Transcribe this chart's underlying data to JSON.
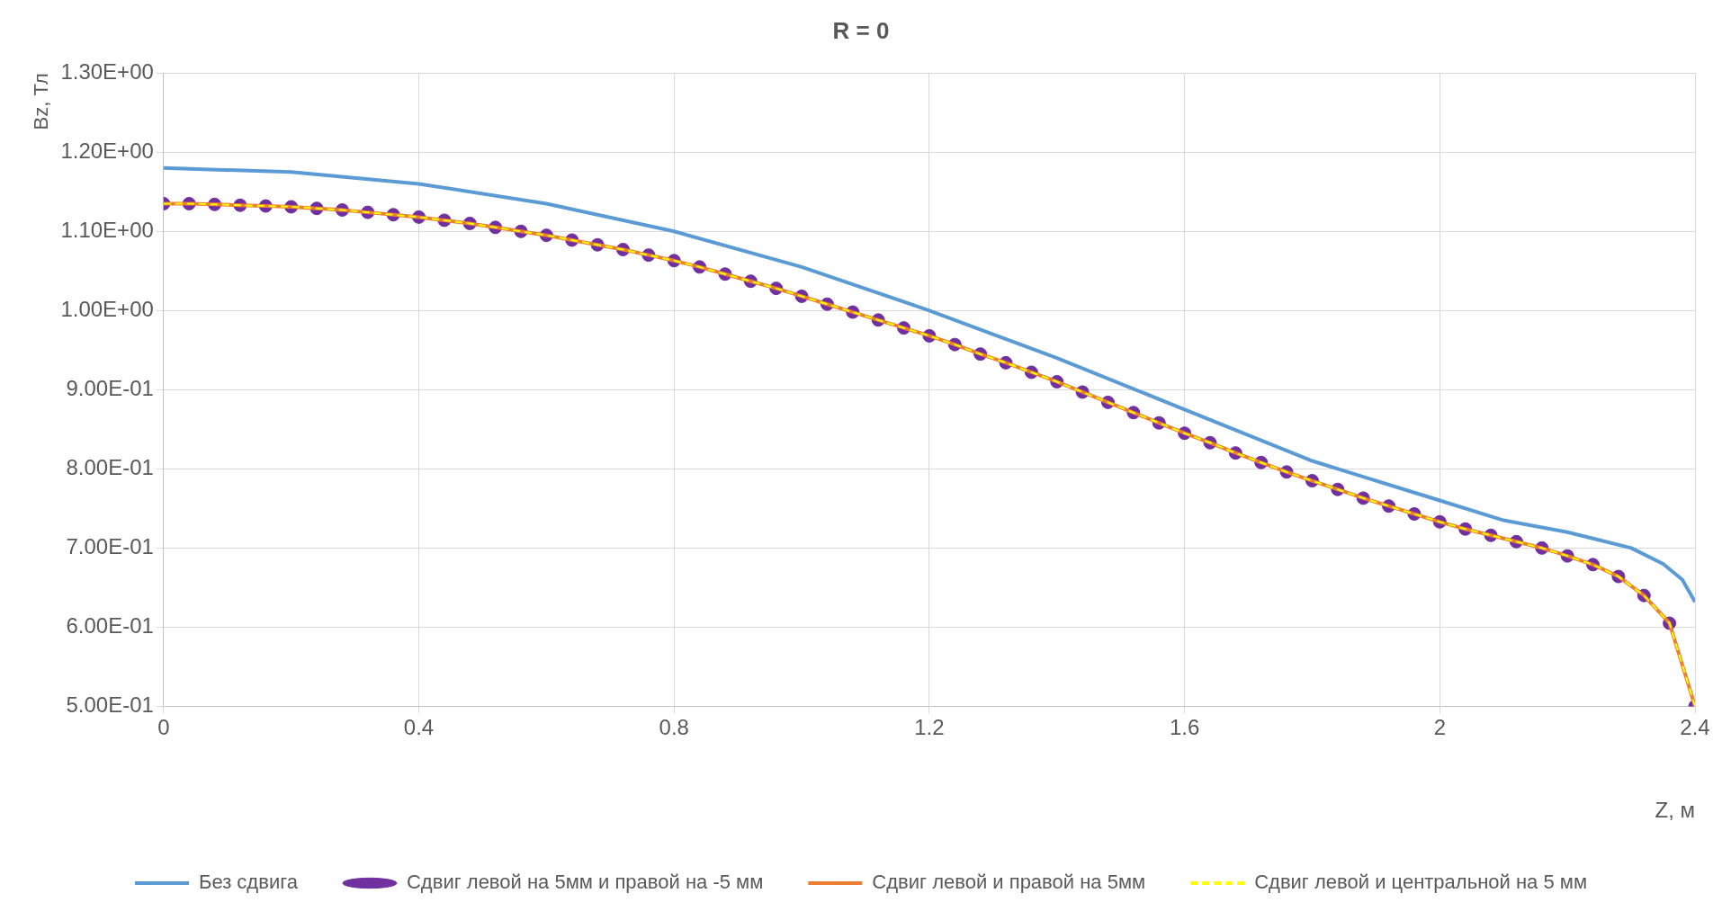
{
  "chart_data": {
    "type": "line",
    "title": "R = 0",
    "xlabel": "Z, м",
    "ylabel": "Bz, Тл",
    "x": [
      0,
      0.04,
      0.08,
      0.12,
      0.16,
      0.2,
      0.24,
      0.28,
      0.32,
      0.36,
      0.4,
      0.44,
      0.48,
      0.52,
      0.56,
      0.6,
      0.64,
      0.68,
      0.72,
      0.76,
      0.8,
      0.84,
      0.88,
      0.92,
      0.96,
      1.0,
      1.04,
      1.08,
      1.12,
      1.16,
      1.2,
      1.24,
      1.28,
      1.32,
      1.36,
      1.4,
      1.44,
      1.48,
      1.52,
      1.56,
      1.6,
      1.64,
      1.68,
      1.72,
      1.76,
      1.8,
      1.84,
      1.88,
      1.92,
      1.96,
      2.0,
      2.04,
      2.08,
      2.12,
      2.16,
      2.2,
      2.24,
      2.28,
      2.32,
      2.36,
      2.4
    ],
    "series": [
      {
        "name": "Без сдвига",
        "color": "#5b9bd5",
        "type": "line",
        "marker": "none",
        "line_style": "solid",
        "x": [
          0,
          0.2,
          0.4,
          0.6,
          0.8,
          1.0,
          1.2,
          1.4,
          1.6,
          1.8,
          2.0,
          2.1,
          2.2,
          2.3,
          2.35,
          2.38,
          2.4
        ],
        "values": [
          1.18,
          1.175,
          1.16,
          1.135,
          1.1,
          1.055,
          1.0,
          0.94,
          0.875,
          0.81,
          0.76,
          0.735,
          0.72,
          0.7,
          0.68,
          0.66,
          0.632
        ]
      },
      {
        "name": "Сдвиг левой на 5мм и правой на -5 мм",
        "color": "#7030a0",
        "type": "scatter",
        "marker": "circle",
        "values": [
          1.135,
          1.135,
          1.134,
          1.133,
          1.132,
          1.131,
          1.129,
          1.127,
          1.124,
          1.121,
          1.118,
          1.114,
          1.11,
          1.105,
          1.1,
          1.095,
          1.089,
          1.083,
          1.077,
          1.07,
          1.063,
          1.055,
          1.046,
          1.037,
          1.028,
          1.018,
          1.008,
          0.998,
          0.988,
          0.978,
          0.968,
          0.957,
          0.945,
          0.934,
          0.922,
          0.91,
          0.897,
          0.884,
          0.871,
          0.858,
          0.845,
          0.833,
          0.82,
          0.808,
          0.796,
          0.785,
          0.774,
          0.763,
          0.753,
          0.743,
          0.733,
          0.724,
          0.716,
          0.708,
          0.7,
          0.69,
          0.679,
          0.664,
          0.64,
          0.605,
          0.5
        ]
      },
      {
        "name": "Сдвиг левой и правой на 5мм",
        "color": "#ed7d31",
        "type": "line",
        "marker": "none",
        "line_style": "solid",
        "values": [
          1.135,
          1.135,
          1.134,
          1.133,
          1.132,
          1.131,
          1.129,
          1.127,
          1.124,
          1.121,
          1.118,
          1.114,
          1.11,
          1.105,
          1.1,
          1.095,
          1.089,
          1.083,
          1.077,
          1.07,
          1.063,
          1.055,
          1.046,
          1.037,
          1.028,
          1.018,
          1.008,
          0.998,
          0.988,
          0.978,
          0.968,
          0.957,
          0.945,
          0.934,
          0.922,
          0.91,
          0.897,
          0.884,
          0.871,
          0.858,
          0.845,
          0.833,
          0.82,
          0.808,
          0.796,
          0.785,
          0.774,
          0.763,
          0.753,
          0.743,
          0.733,
          0.724,
          0.716,
          0.708,
          0.7,
          0.69,
          0.679,
          0.664,
          0.64,
          0.605,
          0.5
        ]
      },
      {
        "name": "Сдвиг левой и центральной на 5 мм",
        "color": "#ffff00",
        "type": "line",
        "marker": "none",
        "line_style": "dashed",
        "values": [
          1.135,
          1.135,
          1.134,
          1.133,
          1.132,
          1.131,
          1.129,
          1.127,
          1.124,
          1.121,
          1.118,
          1.114,
          1.11,
          1.105,
          1.1,
          1.095,
          1.089,
          1.083,
          1.077,
          1.07,
          1.063,
          1.055,
          1.046,
          1.037,
          1.028,
          1.018,
          1.008,
          0.998,
          0.988,
          0.978,
          0.968,
          0.957,
          0.945,
          0.934,
          0.922,
          0.91,
          0.897,
          0.884,
          0.871,
          0.858,
          0.845,
          0.833,
          0.82,
          0.808,
          0.796,
          0.785,
          0.774,
          0.763,
          0.753,
          0.743,
          0.733,
          0.724,
          0.716,
          0.708,
          0.7,
          0.69,
          0.679,
          0.664,
          0.64,
          0.605,
          0.5
        ]
      }
    ],
    "xlim": [
      0,
      2.4
    ],
    "xticks": [
      0,
      0.4,
      0.8,
      1.2,
      1.6,
      2,
      2.4
    ],
    "ylim": [
      0.5,
      1.3
    ],
    "yticks": [
      {
        "value": 0.5,
        "label": "5.00E-01"
      },
      {
        "value": 0.6,
        "label": "6.00E-01"
      },
      {
        "value": 0.7,
        "label": "7.00E-01"
      },
      {
        "value": 0.8,
        "label": "8.00E-01"
      },
      {
        "value": 0.9,
        "label": "9.00E-01"
      },
      {
        "value": 1.0,
        "label": "1.00E+00"
      },
      {
        "value": 1.1,
        "label": "1.10E+00"
      },
      {
        "value": 1.2,
        "label": "1.20E+00"
      },
      {
        "value": 1.3,
        "label": "1.30E+00"
      }
    ],
    "grid": true,
    "legend": "bottom"
  }
}
